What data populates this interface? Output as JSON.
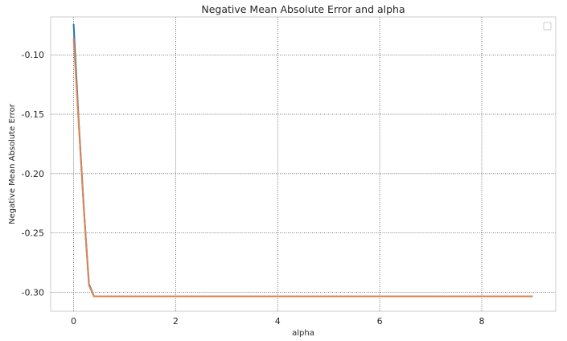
{
  "chart_data": {
    "type": "line",
    "title": "Negative Mean Absolute Error and alpha",
    "xlabel": "alpha",
    "ylabel": "Negative Mean Absolute Error",
    "xlim": [
      -0.45,
      9.45
    ],
    "ylim": [
      -0.316,
      -0.068
    ],
    "xticks": [
      0,
      2,
      4,
      6,
      8
    ],
    "xtick_labels": [
      "0",
      "2",
      "4",
      "6",
      "8"
    ],
    "yticks": [
      -0.1,
      -0.15,
      -0.2,
      -0.25,
      -0.3
    ],
    "ytick_labels": [
      "-0.10",
      "-0.15",
      "-0.20",
      "-0.25",
      "-0.30"
    ],
    "grid": true,
    "legend": {
      "visible": true,
      "placement": "top-right",
      "entries": []
    },
    "series": [
      {
        "color": "#1f77b4",
        "x": [
          0.0,
          0.1,
          0.2,
          0.3,
          0.4,
          0.5,
          1.0,
          2.0,
          3.0,
          4.0,
          5.0,
          6.0,
          7.0,
          8.0,
          9.0
        ],
        "y": [
          -0.074,
          -0.156,
          -0.229,
          -0.293,
          -0.3035,
          -0.3035,
          -0.3035,
          -0.3035,
          -0.3035,
          -0.3035,
          -0.3035,
          -0.3035,
          -0.3035,
          -0.3035,
          -0.3035
        ]
      },
      {
        "color": "#dd8452",
        "x": [
          0.0,
          0.1,
          0.2,
          0.3,
          0.4,
          0.5,
          1.0,
          2.0,
          3.0,
          4.0,
          5.0,
          6.0,
          7.0,
          8.0,
          9.0
        ],
        "y": [
          -0.086,
          -0.158,
          -0.23,
          -0.294,
          -0.3035,
          -0.3035,
          -0.3035,
          -0.3035,
          -0.3035,
          -0.3035,
          -0.3035,
          -0.3035,
          -0.3035,
          -0.3035,
          -0.3035
        ]
      }
    ]
  }
}
